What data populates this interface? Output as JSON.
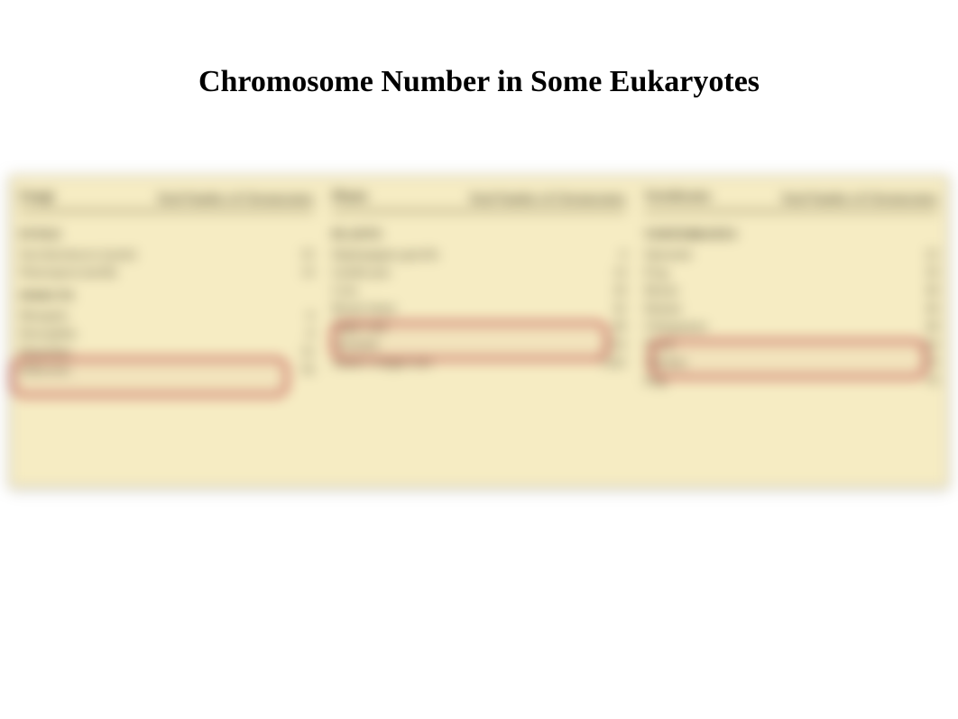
{
  "title": "Chromosome Number in Some Eukaryotes",
  "table": {
    "panel_background": "#f6ecc3",
    "panel_border": "#b8a96e",
    "text_color": "#3a3420",
    "rule_color": "#6f633a",
    "highlight_border": "#b94141",
    "columns": [
      {
        "header_left": "Fungi",
        "header_right": "Total Number of Chromosomes",
        "sections": [
          {
            "label": "FUNGI",
            "rows": [
              {
                "name": "Saccharomyces (yeast)",
                "val": "32"
              },
              {
                "name": "Neurospora (mold)",
                "val": "14"
              }
            ]
          },
          {
            "label": "INSECTS",
            "rows": [
              {
                "name": "Mosquito",
                "val": "6"
              },
              {
                "name": "Drosophila",
                "val": "8"
              },
              {
                "name": "Honeybee",
                "val": "32"
              },
              {
                "name": "Silkworm",
                "val": "56"
              }
            ]
          }
        ],
        "highlight_row_index": 4
      },
      {
        "header_left": "Plants",
        "header_right": "Total Number of Chromosomes",
        "sections": [
          {
            "label": "PLANTS",
            "rows": [
              {
                "name": "Haplopappus gracilis",
                "val": "4"
              },
              {
                "name": "Garden pea",
                "val": "14"
              },
              {
                "name": "Corn",
                "val": "20"
              },
              {
                "name": "Bread wheat",
                "val": "42"
              },
              {
                "name": "Sugar cane",
                "val": "80"
              },
              {
                "name": "Horsetail",
                "val": "216"
              },
              {
                "name": "Adder's tongue fern",
                "val": "1262"
              }
            ]
          }
        ],
        "highlight_row_index": 3
      },
      {
        "header_left": "Vertebrates",
        "header_right": "Total Number of Chromosomes",
        "sections": [
          {
            "label": "VERTEBRATES",
            "rows": [
              {
                "name": "Opossum",
                "val": "22"
              },
              {
                "name": "Frog",
                "val": "26"
              },
              {
                "name": "Mouse",
                "val": "40"
              },
              {
                "name": "Human",
                "val": "46"
              },
              {
                "name": "Chimpanzee",
                "val": "48"
              },
              {
                "name": "Horse",
                "val": "64"
              },
              {
                "name": "Chicken",
                "val": "78"
              },
              {
                "name": "Dog",
                "val": "78"
              }
            ]
          }
        ],
        "highlight_row_index": 3
      }
    ]
  }
}
